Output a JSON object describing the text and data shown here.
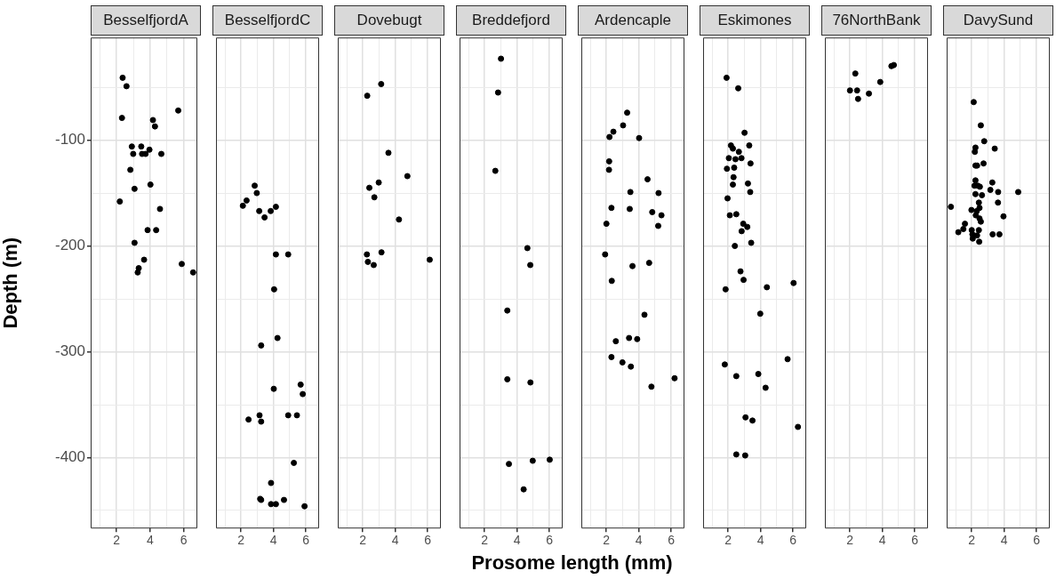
{
  "chart_data": [
    {
      "type": "scatter",
      "title": "BesselfjordA",
      "ylabel": "Depth (m)",
      "color": "#000000",
      "marker": "circle",
      "grid": true,
      "xlim": [
        0.45,
        6.82
      ],
      "ylim": [
        -467,
        -3
      ],
      "xticks": [
        {
          "value": 1,
          "label": null
        },
        2,
        {
          "value": 3,
          "label": null
        },
        4,
        {
          "value": 5,
          "label": null
        },
        6
      ],
      "yticks": [
        {
          "value": -50,
          "label": null
        },
        -100,
        {
          "value": -150,
          "label": null
        },
        -200,
        {
          "value": -250,
          "label": null
        },
        -300,
        {
          "value": -350,
          "label": null
        },
        -400,
        {
          "value": -450,
          "label": null
        }
      ],
      "x": [
        2.36,
        2.59,
        2.32,
        5.68,
        4.17,
        4.29,
        2.91,
        3.47,
        2.99,
        3.52,
        3.73,
        3.96,
        4.67,
        2.82,
        4.02,
        3.07,
        2.19,
        4.59,
        3.85,
        4.36,
        3.07,
        3.64,
        3.32,
        3.26,
        5.89,
        6.57
      ],
      "values": [
        -41,
        -49,
        -79,
        -72,
        -81,
        -87,
        -106,
        -106,
        -113,
        -113,
        -113,
        -109,
        -113,
        -128,
        -142,
        -146,
        -158,
        -165,
        -185,
        -185,
        -197,
        -213,
        -221,
        -225,
        -217,
        -225
      ]
    },
    {
      "type": "scatter",
      "title": "BesselfjordC",
      "color": "#000000",
      "marker": "circle",
      "grid": true,
      "tick_labels": "x",
      "xlim": [
        0.45,
        6.82
      ],
      "ylim": [
        -467,
        -3
      ],
      "xticks": [
        {
          "value": 1,
          "label": null
        },
        2,
        {
          "value": 3,
          "label": null
        },
        4,
        {
          "value": 5,
          "label": null
        },
        6
      ],
      "yticks": [
        {
          "value": -50,
          "label": null
        },
        -100,
        {
          "value": -150,
          "label": null
        },
        -200,
        {
          "value": -250,
          "label": null
        },
        -300,
        {
          "value": -350,
          "label": null
        },
        -400,
        {
          "value": -450,
          "label": null
        }
      ],
      "x": [
        2.84,
        2.97,
        2.34,
        2.11,
        3.12,
        3.83,
        4.15,
        3.45,
        4.15,
        4.91,
        4.04,
        4.25,
        3.24,
        5.68,
        5.81,
        4.02,
        3.14,
        3.24,
        2.46,
        4.91,
        5.45,
        5.26,
        3.85,
        3.18,
        3.24,
        3.85,
        4.15,
        4.65,
        5.92
      ],
      "values": [
        -143,
        -150,
        -157,
        -162,
        -167,
        -167,
        -163,
        -173,
        -208,
        -208,
        -241,
        -287,
        -294,
        -331,
        -340,
        -335,
        -360,
        -366,
        -364,
        -360,
        -360,
        -405,
        -424,
        -439,
        -440,
        -444,
        -444,
        -440,
        -446
      ]
    },
    {
      "type": "scatter",
      "title": "Dovebugt",
      "color": "#000000",
      "marker": "circle",
      "grid": true,
      "tick_labels": "x",
      "xlim": [
        0.45,
        6.82
      ],
      "ylim": [
        -467,
        -3
      ],
      "xticks": [
        {
          "value": 1,
          "label": null
        },
        2,
        {
          "value": 3,
          "label": null
        },
        4,
        {
          "value": 5,
          "label": null
        },
        6
      ],
      "yticks": [
        {
          "value": -50,
          "label": null
        },
        -100,
        {
          "value": -150,
          "label": null
        },
        -200,
        {
          "value": -250,
          "label": null
        },
        -300,
        {
          "value": -350,
          "label": null
        },
        -400,
        {
          "value": -450,
          "label": null
        }
      ],
      "x": [
        3.13,
        2.27,
        3.58,
        4.75,
        2.98,
        2.4,
        2.71,
        4.23,
        2.25,
        3.15,
        2.31,
        2.67,
        6.13
      ],
      "values": [
        -47,
        -58,
        -112,
        -134,
        -140,
        -145,
        -154,
        -175,
        -208,
        -206,
        -215,
        -218,
        -213
      ]
    },
    {
      "type": "scatter",
      "title": "Breddefjord",
      "color": "#000000",
      "marker": "circle",
      "grid": true,
      "tick_labels": "x",
      "xlim": [
        0.45,
        6.82
      ],
      "ylim": [
        -467,
        -3
      ],
      "xticks": [
        {
          "value": 1,
          "label": null
        },
        2,
        {
          "value": 3,
          "label": null
        },
        4,
        {
          "value": 5,
          "label": null
        },
        6
      ],
      "yticks": [
        {
          "value": -50,
          "label": null
        },
        -100,
        {
          "value": -150,
          "label": null
        },
        -200,
        {
          "value": -250,
          "label": null
        },
        -300,
        {
          "value": -350,
          "label": null
        },
        -400,
        {
          "value": -450,
          "label": null
        }
      ],
      "x": [
        3.01,
        2.83,
        2.66,
        4.64,
        4.82,
        3.4,
        3.4,
        4.83,
        3.5,
        4.97,
        6.02,
        4.41
      ],
      "values": [
        -23,
        -55,
        -129,
        -202,
        -218,
        -261,
        -326,
        -329,
        -406,
        -403,
        -402,
        -430
      ]
    },
    {
      "type": "scatter",
      "title": "Ardencaple",
      "xlabel": "Prosome length (mm)",
      "color": "#000000",
      "marker": "circle",
      "grid": true,
      "tick_labels": "x",
      "xlim": [
        0.45,
        6.82
      ],
      "ylim": [
        -467,
        -3
      ],
      "xticks": [
        {
          "value": 1,
          "label": null
        },
        2,
        {
          "value": 3,
          "label": null
        },
        4,
        {
          "value": 5,
          "label": null
        },
        6
      ],
      "yticks": [
        {
          "value": -50,
          "label": null
        },
        -100,
        {
          "value": -150,
          "label": null
        },
        -200,
        {
          "value": -250,
          "label": null
        },
        -300,
        {
          "value": -350,
          "label": null
        },
        -400,
        {
          "value": -450,
          "label": null
        }
      ],
      "x": [
        3.28,
        3.03,
        2.43,
        2.19,
        4.02,
        2.17,
        2.16,
        4.54,
        3.48,
        5.22,
        2.31,
        3.44,
        4.83,
        5.4,
        2.0,
        5.2,
        1.92,
        4.64,
        3.61,
        2.33,
        4.35,
        2.58,
        3.4,
        3.9,
        2.31,
        2.99,
        3.51,
        6.21,
        4.78
      ],
      "values": [
        -74,
        -86,
        -92,
        -97,
        -98,
        -120,
        -128,
        -137,
        -149,
        -150,
        -164,
        -165,
        -168,
        -171,
        -179,
        -181,
        -208,
        -216,
        -219,
        -233,
        -265,
        -290,
        -287,
        -288,
        -305,
        -310,
        -314,
        -325,
        -333
      ]
    },
    {
      "type": "scatter",
      "title": "Eskimones",
      "color": "#000000",
      "marker": "circle",
      "grid": true,
      "tick_labels": "x",
      "xlim": [
        0.45,
        6.82
      ],
      "ylim": [
        -467,
        -3
      ],
      "xticks": [
        {
          "value": 1,
          "label": null
        },
        2,
        {
          "value": 3,
          "label": null
        },
        4,
        {
          "value": 5,
          "label": null
        },
        6
      ],
      "yticks": [
        {
          "value": -50,
          "label": null
        },
        -100,
        {
          "value": -150,
          "label": null
        },
        -200,
        {
          "value": -250,
          "label": null
        },
        -300,
        {
          "value": -350,
          "label": null
        },
        -400,
        {
          "value": -450,
          "label": null
        }
      ],
      "x": [
        1.9,
        2.62,
        3.01,
        2.17,
        2.29,
        2.66,
        3.3,
        2.04,
        2.45,
        2.82,
        3.38,
        1.92,
        2.37,
        2.33,
        2.29,
        3.22,
        3.36,
        1.96,
        2.1,
        2.5,
        2.93,
        3.18,
        2.83,
        2.41,
        3.42,
        2.76,
        2.95,
        1.84,
        4.39,
        6.04,
        3.98,
        5.67,
        1.79,
        2.5,
        3.86,
        4.31,
        3.07,
        3.5,
        6.31,
        2.5,
        3.05
      ],
      "values": [
        -41,
        -51,
        -93,
        -105,
        -108,
        -111,
        -105,
        -117,
        -118,
        -117,
        -122,
        -127,
        -126,
        -135,
        -142,
        -141,
        -149,
        -155,
        -171,
        -170,
        -179,
        -182,
        -186,
        -200,
        -197,
        -224,
        -232,
        -241,
        -239,
        -235,
        -264,
        -307,
        -312,
        -323,
        -321,
        -334,
        -362,
        -365,
        -371,
        -397,
        -398
      ]
    },
    {
      "type": "scatter",
      "title": "76NorthBank",
      "color": "#000000",
      "marker": "circle",
      "grid": true,
      "tick_labels": "x",
      "xlim": [
        0.45,
        6.82
      ],
      "ylim": [
        -467,
        -3
      ],
      "xticks": [
        {
          "value": 1,
          "label": null
        },
        2,
        {
          "value": 3,
          "label": null
        },
        4,
        {
          "value": 5,
          "label": null
        },
        6
      ],
      "yticks": [
        {
          "value": -50,
          "label": null
        },
        -100,
        {
          "value": -150,
          "label": null
        },
        -200,
        {
          "value": -250,
          "label": null
        },
        -300,
        {
          "value": -350,
          "label": null
        },
        -400,
        {
          "value": -450,
          "label": null
        }
      ],
      "x": [
        2.33,
        2.0,
        2.44,
        2.5,
        3.17,
        3.87,
        4.56,
        4.71
      ],
      "values": [
        -37,
        -53,
        -53,
        -61,
        -56,
        -45,
        -30,
        -29
      ]
    },
    {
      "type": "scatter",
      "title": "DavySund",
      "color": "#000000",
      "marker": "circle",
      "grid": true,
      "tick_labels": "x",
      "xlim": [
        0.45,
        6.82
      ],
      "ylim": [
        -467,
        -3
      ],
      "xticks": [
        {
          "value": 1,
          "label": null
        },
        2,
        {
          "value": 3,
          "label": null
        },
        4,
        {
          "value": 5,
          "label": null
        },
        6
      ],
      "yticks": [
        {
          "value": -50,
          "label": null
        },
        -100,
        {
          "value": -150,
          "label": null
        },
        -200,
        {
          "value": -250,
          "label": null
        },
        -300,
        {
          "value": -350,
          "label": null
        },
        -400,
        {
          "value": -450,
          "label": null
        }
      ],
      "x": [
        2.12,
        2.56,
        2.77,
        3.42,
        2.23,
        2.19,
        2.73,
        2.23,
        2.33,
        2.23,
        3.27,
        2.17,
        2.37,
        2.5,
        3.15,
        3.63,
        4.87,
        2.23,
        2.63,
        2.44,
        3.62,
        0.71,
        1.98,
        2.31,
        2.48,
        2.25,
        2.48,
        2.56,
        3.96,
        1.58,
        1.48,
        1.17,
        2.0,
        2.44,
        2.04,
        2.33,
        2.06,
        2.46,
        3.29,
        3.71
      ],
      "values": [
        -64,
        -86,
        -101,
        -108,
        -107,
        -111,
        -122,
        -124,
        -124,
        -138,
        -140,
        -143,
        -143,
        -144,
        -147,
        -149,
        -149,
        -151,
        -152,
        -159,
        -159,
        -163,
        -166,
        -167,
        -164,
        -171,
        -174,
        -177,
        -172,
        -179,
        -184,
        -187,
        -185,
        -185,
        -189,
        -190,
        -193,
        -196,
        -189,
        -189
      ]
    }
  ]
}
